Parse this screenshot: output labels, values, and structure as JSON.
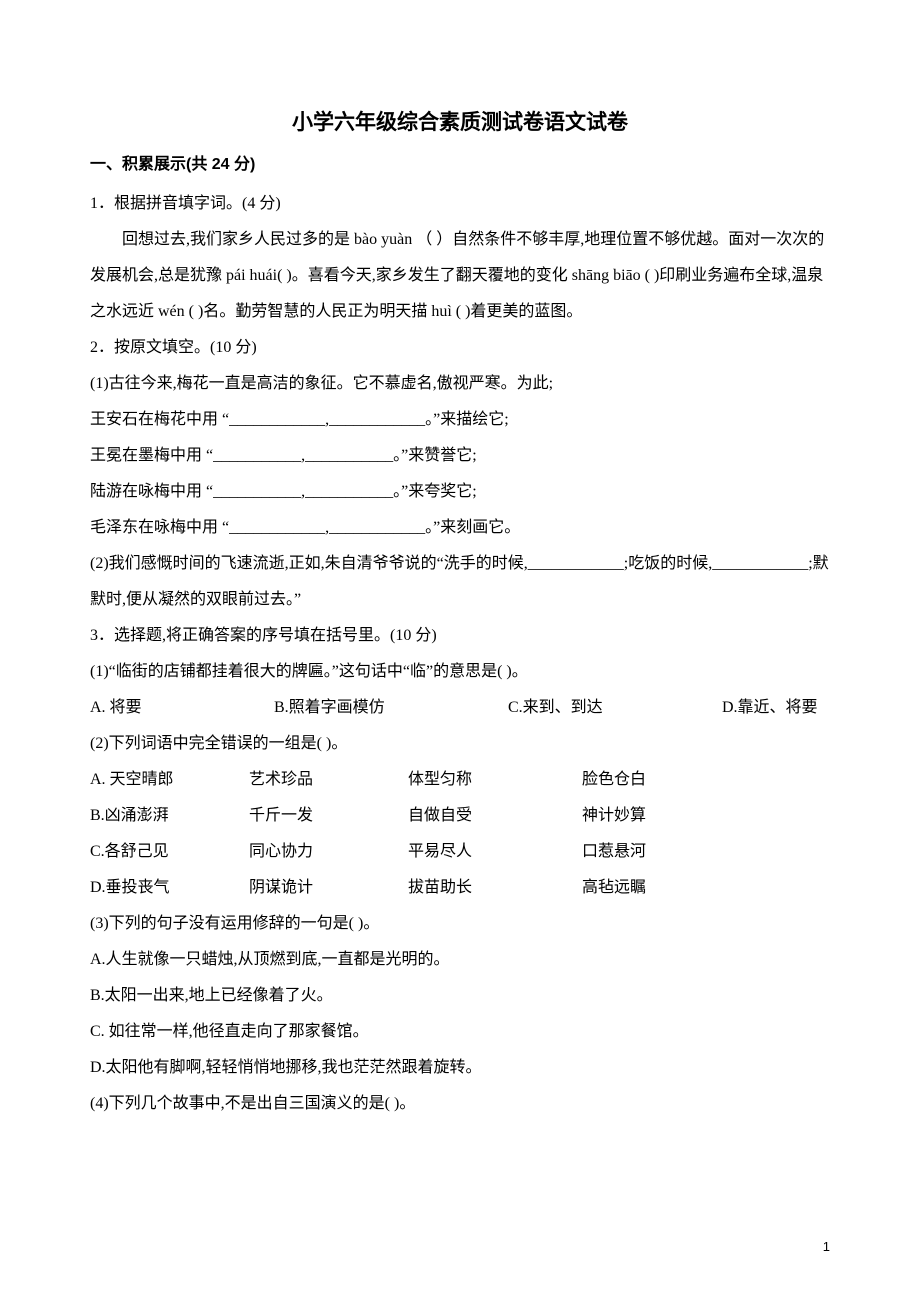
{
  "title": "小学六年级综合素质测试卷语文试卷",
  "section1": {
    "heading": "一、积累展示(共 24 分)",
    "q1": {
      "prompt": "1．根据拼音填字词。(4 分)",
      "paragraph": "回想过去,我们家乡人民过多的是 bào yuàn （           ）自然条件不够丰厚,地理位置不够优越。面对一次次的发展机会,总是犹豫 pái huái(          )。喜看今天,家乡发生了翻天覆地的变化 shāng biāo (           )印刷业务遍布全球,温泉之水远近 wén (         )名。勤劳智慧的人民正为明天描 huì (     )着更美的蓝图。"
    },
    "q2": {
      "prompt": "2．按原文填空。(10 分)",
      "item1_intro": "(1)古往今来,梅花一直是高洁的象征。它不慕虚名,傲视严寒。为此;",
      "line_wax": "王安石在梅花中用 “____________,____________。”来描绘它;",
      "line_wm": "王冕在墨梅中用 “___________,___________。”来赞誉它;",
      "line_ly": "陆游在咏梅中用 “___________,___________。”来夸奖它;",
      "line_mzd": "毛泽东在咏梅中用 “____________,____________。”来刻画它。",
      "item2": "(2)我们感慨时间的飞速流逝,正如,朱自清爷爷说的“洗手的时候,____________;吃饭的时候,____________;默默时,便从凝然的双眼前过去。”"
    },
    "q3": {
      "prompt": "3．选择题,将正确答案的序号填在括号里。(10 分)",
      "item1": {
        "stem": "(1)“临街的店铺都挂着很大的牌匾。”这句话中“临”的意思是(     )。",
        "A": "A. 将要",
        "B": "B.照着字画模仿",
        "C": "C.来到、到达",
        "D": "D.靠近、将要"
      },
      "item2": {
        "stem": "(2)下列词语中完全错误的一组是(     )。",
        "rows": [
          [
            "A. 天空晴郎",
            "艺术珍品",
            "体型匀称",
            "脸色仓白"
          ],
          [
            "B.凶涌澎湃",
            "千斤一发",
            "自做自受",
            "神计妙算"
          ],
          [
            "C.各舒己见",
            "同心协力",
            "平易尽人",
            "口惹悬河"
          ],
          [
            "D.垂投丧气",
            "阴谋诡计",
            "拔苗助长",
            "高毡远瞩"
          ]
        ]
      },
      "item3": {
        "stem": "(3)下列的句子没有运用修辞的一句是(      )。",
        "A": "A.人生就像一只蜡烛,从顶燃到底,一直都是光明的。",
        "B": "B.太阳一出来,地上已经像着了火。",
        "C": "C. 如往常一样,他径直走向了那家餐馆。",
        "D": "D.太阳他有脚啊,轻轻悄悄地挪移,我也茫茫然跟着旋转。"
      },
      "item4": {
        "stem": "(4)下列几个故事中,不是出自三国演义的是(       )。"
      }
    }
  },
  "pageNumber": "1"
}
